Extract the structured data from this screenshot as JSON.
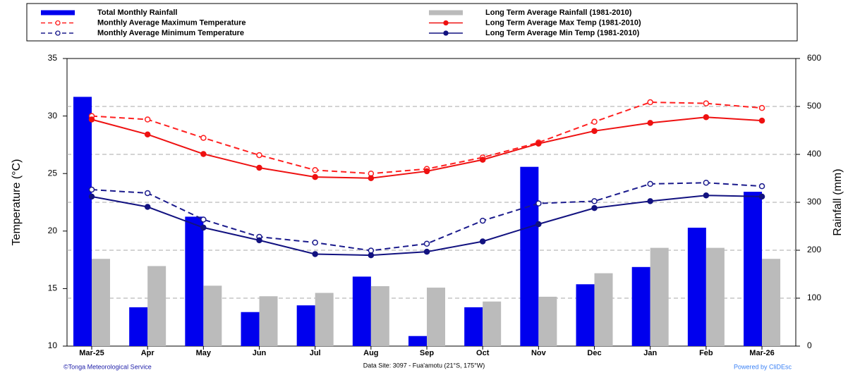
{
  "chart_data": {
    "type": "bar-line",
    "categories": [
      "Mar-25",
      "Apr",
      "May",
      "Jun",
      "Jul",
      "Aug",
      "Sep",
      "Oct",
      "Nov",
      "Dec",
      "Jan",
      "Feb",
      "Mar-26"
    ],
    "series": [
      {
        "name": "Total Monthly Rainfall",
        "type": "bar",
        "axis": "y2",
        "color": "#0000ee",
        "values": [
          520,
          81,
          270,
          71,
          85,
          145,
          21,
          81,
          374,
          129,
          165,
          247,
          322
        ]
      },
      {
        "name": "Monthly Average Maximum Temperature",
        "type": "line",
        "dashed": true,
        "marker": "open",
        "color": "#ff2020",
        "values": [
          30.0,
          29.7,
          28.1,
          26.6,
          25.3,
          25.0,
          25.4,
          26.4,
          27.7,
          29.5,
          31.2,
          31.1,
          30.7
        ]
      },
      {
        "name": "Monthly Average Minimum Temperature",
        "type": "line",
        "dashed": true,
        "marker": "open",
        "color": "#1a1a8c",
        "values": [
          23.6,
          23.3,
          21.0,
          19.5,
          19.0,
          18.3,
          18.9,
          20.9,
          22.4,
          22.6,
          24.1,
          24.2,
          23.9
        ]
      },
      {
        "name": "Long Term Average Rainfall (1981-2010)",
        "type": "bar",
        "axis": "y2",
        "color": "#bbbbbb",
        "values": [
          182,
          167,
          126,
          104,
          111,
          125,
          122,
          93,
          103,
          152,
          205,
          205,
          182
        ]
      },
      {
        "name": "Long Term Average Max Temp (1981-2010)",
        "type": "line",
        "dashed": false,
        "marker": "filled",
        "color": "#ee1111",
        "values": [
          29.7,
          28.4,
          26.7,
          25.5,
          24.7,
          24.6,
          25.2,
          26.2,
          27.6,
          28.7,
          29.4,
          29.9,
          29.6
        ]
      },
      {
        "name": "Long Term Average Min Temp (1981-2010)",
        "type": "line",
        "dashed": false,
        "marker": "filled",
        "color": "#121280",
        "values": [
          23.0,
          22.1,
          20.3,
          19.2,
          18.0,
          17.9,
          18.2,
          19.1,
          20.6,
          22.0,
          22.6,
          23.1,
          23.0
        ]
      }
    ],
    "ylabel": "Temperature (°C)",
    "y2label": "Rainfall (mm)",
    "ylim": [
      10,
      35
    ],
    "yticks": [
      10,
      15,
      20,
      25,
      30,
      35
    ],
    "y2lim": [
      0,
      600
    ],
    "y2ticks": [
      0,
      100,
      200,
      300,
      400,
      500,
      600
    ],
    "grid": true
  },
  "footer": {
    "left": "©Tonga Meteorological Service",
    "center": "Data Site: 3097 - Fua'amotu (21°S, 175°W)",
    "right": "Powered by CliDEsc"
  }
}
